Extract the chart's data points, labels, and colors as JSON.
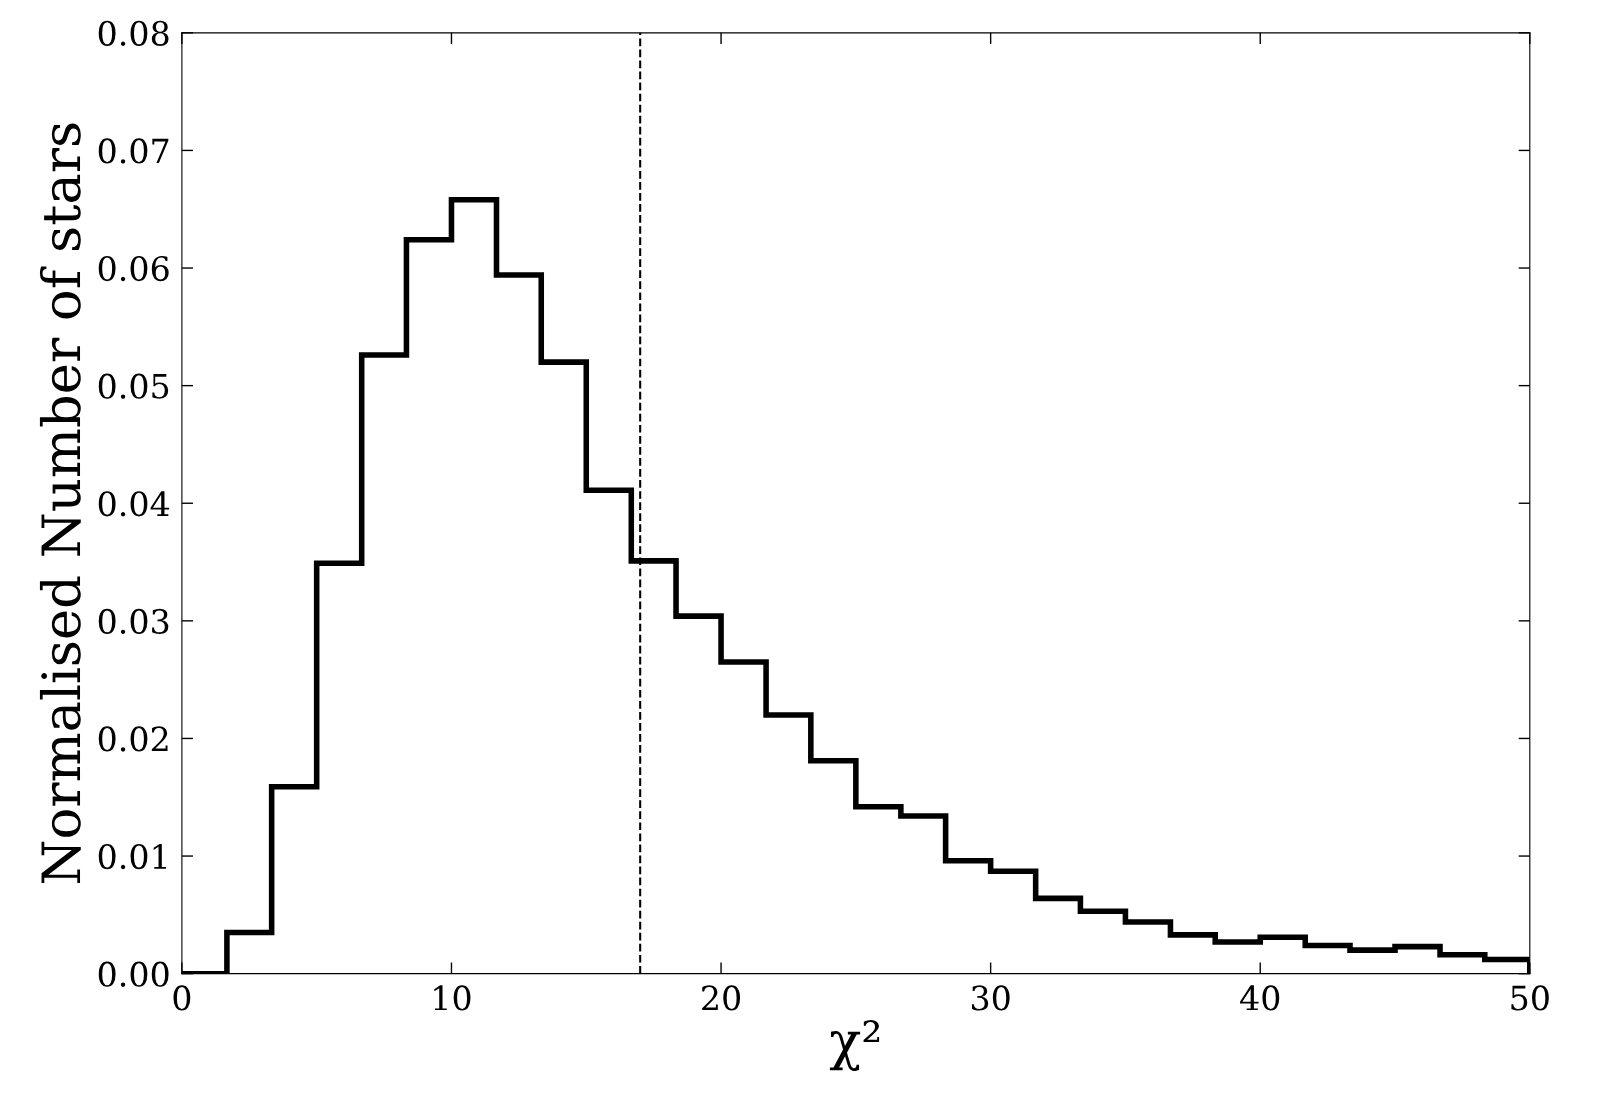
{
  "chart_data": {
    "type": "histogram",
    "xlabel": "χ²",
    "ylabel": "Normalised Number of stars",
    "bins": [
      0,
      1.67,
      3.33,
      5,
      6.67,
      8.33,
      10,
      11.67,
      13.33,
      15,
      16.67,
      18.33,
      20,
      21.67,
      23.33,
      25,
      26.67,
      28.33,
      30,
      31.67,
      33.33,
      35,
      36.67,
      38.33,
      40,
      41.67,
      43.33,
      45,
      46.67,
      48.33,
      50
    ],
    "values": [
      0,
      0.0035,
      0.0159,
      0.0349,
      0.0526,
      0.0624,
      0.0658,
      0.0594,
      0.052,
      0.0411,
      0.0351,
      0.0304,
      0.0265,
      0.022,
      0.0181,
      0.0142,
      0.0134,
      0.0096,
      0.0087,
      0.0064,
      0.0053,
      0.0044,
      0.0033,
      0.0027,
      0.0031,
      0.0024,
      0.002,
      0.0023,
      0.0016,
      0.0012
    ],
    "color": "#000000",
    "xlim": [
      0,
      50
    ],
    "xticks": [
      0,
      10,
      20,
      30,
      40,
      50
    ],
    "ylim": [
      0,
      0.08
    ],
    "yticks": [
      {
        "value": 0,
        "label": "0.00"
      },
      {
        "value": 0.01,
        "label": "0.01"
      },
      {
        "value": 0.02,
        "label": "0.02"
      },
      {
        "value": 0.03,
        "label": "0.03"
      },
      {
        "value": 0.04,
        "label": "0.04"
      },
      {
        "value": 0.05,
        "label": "0.05"
      },
      {
        "value": 0.06,
        "label": "0.06"
      },
      {
        "value": 0.07,
        "label": "0.07"
      },
      {
        "value": 0.08,
        "label": "0.08"
      }
    ],
    "ref_lines": [
      {
        "axis": "x",
        "value": 17,
        "color": "#000000",
        "line_style": "dashed"
      }
    ],
    "grid": false
  }
}
